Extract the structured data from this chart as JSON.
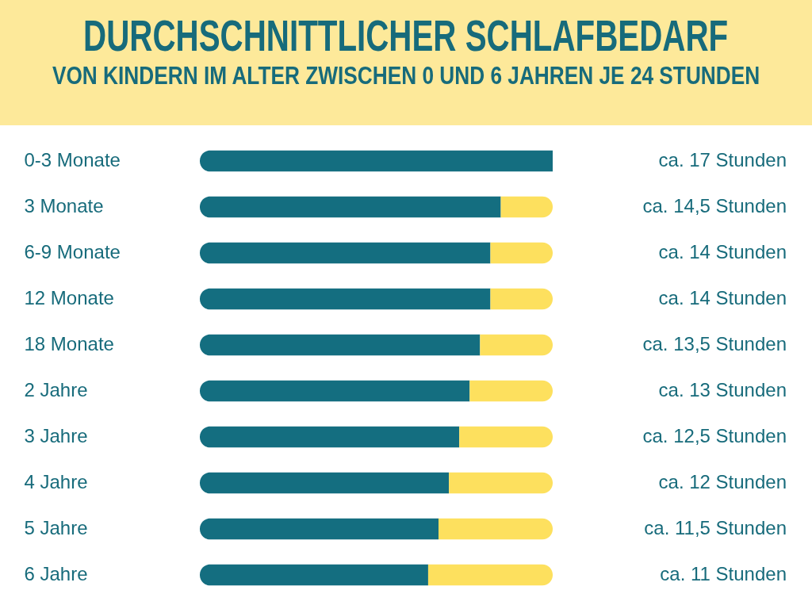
{
  "chart_data": {
    "type": "bar",
    "orientation": "horizontal",
    "stacked": true,
    "title": "DURCHSCHNITTLICHER SCHLAFBEDARF",
    "subtitle": "VON KINDERN IM ALTER ZWISCHEN 0 UND 6 JAHREN JE 24 STUNDEN",
    "categories": [
      "0-3 Monate",
      "3 Monate",
      "6-9 Monate",
      "12 Monate",
      "18 Monate",
      "2 Jahre",
      "3 Jahre",
      "4 Jahre",
      "5 Jahre",
      "6 Jahre"
    ],
    "series": [
      {
        "color": "#146e80",
        "values": [
          17,
          14.5,
          14,
          14,
          13.5,
          13,
          12.5,
          12,
          11.5,
          11
        ],
        "value_labels": [
          "ca. 17 Stunden",
          "ca. 14,5 Stunden",
          "ca. 14 Stunden",
          "ca. 14 Stunden",
          "ca. 13,5 Stunden",
          "ca. 13 Stunden",
          "ca. 12,5 Stunden",
          "ca. 12 Stunden",
          "ca. 11,5 Stunden",
          "ca. 11 Stunden"
        ]
      },
      {
        "color": "#fde05e",
        "values": [
          0,
          2.5,
          3,
          3,
          3.5,
          4,
          4.5,
          5,
          5.5,
          6
        ]
      }
    ],
    "xlim": [
      0,
      17
    ],
    "tick_labels": "y",
    "grid": false
  }
}
